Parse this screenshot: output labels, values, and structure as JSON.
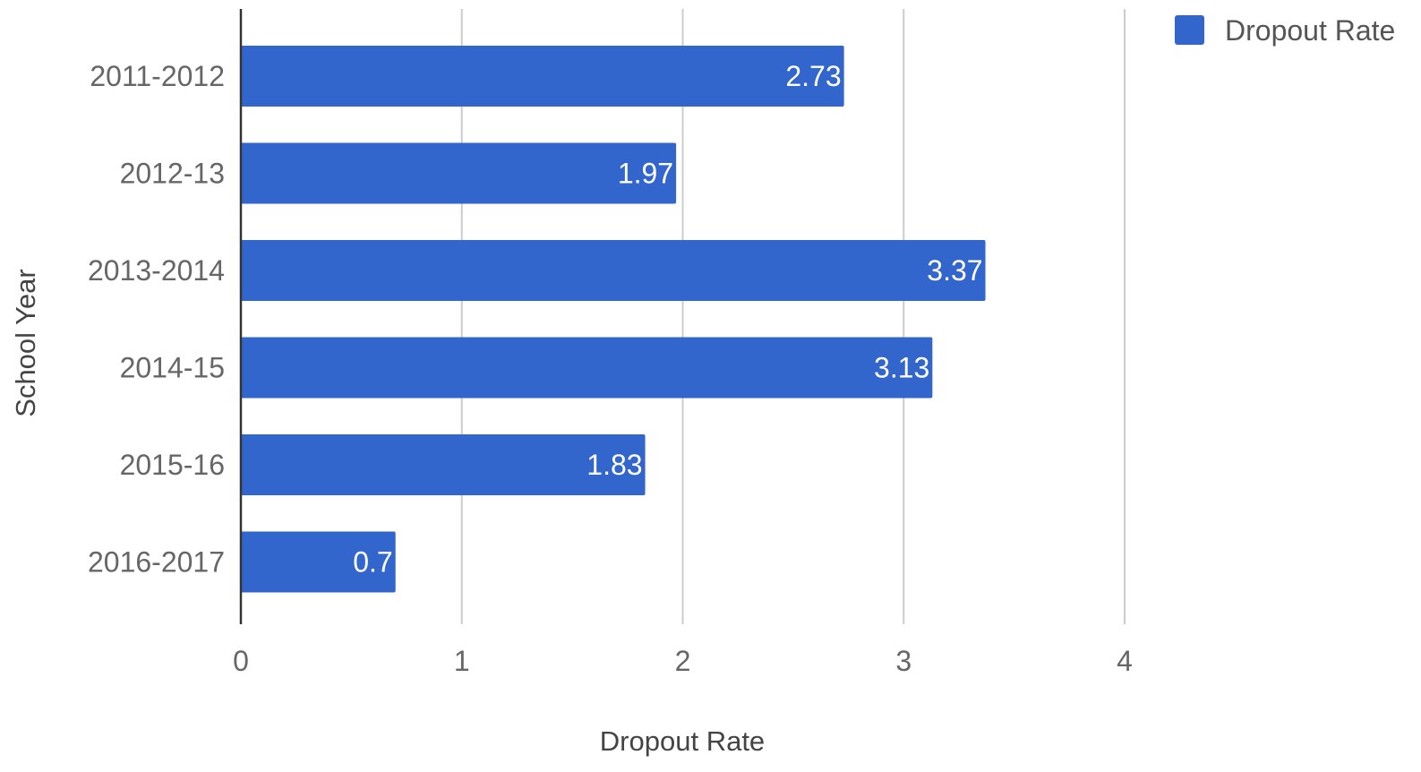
{
  "chart_data": {
    "type": "bar",
    "orientation": "horizontal",
    "categories": [
      "2011-2012",
      "2012-13",
      "2013-2014",
      "2014-15",
      "2015-16",
      "2016-2017"
    ],
    "series": [
      {
        "name": "Dropout Rate",
        "values": [
          2.73,
          1.97,
          3.37,
          3.13,
          1.83,
          0.7
        ],
        "color": "#3366cc"
      }
    ],
    "data_labels": [
      "2.73",
      "1.97",
      "3.37",
      "3.13",
      "1.83",
      "0.7"
    ],
    "xlabel": "Dropout Rate",
    "ylabel": "School Year",
    "xlim": [
      0,
      4
    ],
    "x_ticks": [
      "0",
      "1",
      "2",
      "3",
      "4"
    ],
    "grid": "vertical",
    "legend_position": "top-right"
  }
}
